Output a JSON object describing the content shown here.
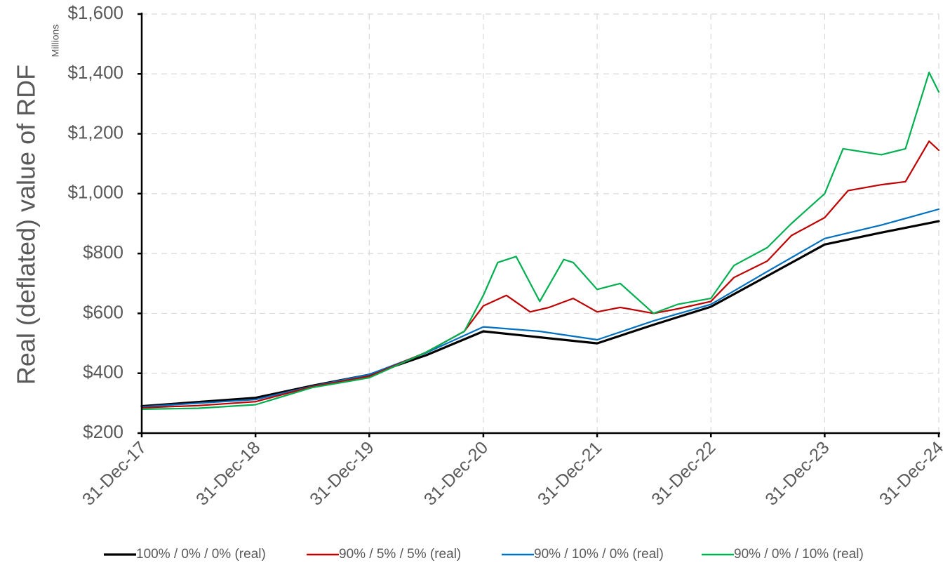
{
  "chart_data": {
    "type": "line",
    "title": "",
    "ylabel": "Real (deflated) value of RDF",
    "yunits": "Millions",
    "xlabel": "",
    "ylim": [
      200,
      1600
    ],
    "yticks": [
      200,
      400,
      600,
      800,
      1000,
      1200,
      1400,
      1600
    ],
    "ytick_labels": [
      "$200",
      "$400",
      "$600",
      "$800",
      "$1,000",
      "$1,200",
      "$1,400",
      "$1,600"
    ],
    "x_categories": [
      "31-Dec-17",
      "31-Dec-18",
      "31-Dec-19",
      "31-Dec-20",
      "31-Dec-21",
      "31-Dec-22",
      "31-Dec-23",
      "31-Dec-24"
    ],
    "grid": true,
    "legend_position": "bottom",
    "colors": {
      "axis": "#000000",
      "grid": "#d9d9d9",
      "text": "#595959"
    },
    "series": [
      {
        "name": "100% / 0% / 0% (real)",
        "color": "#000000",
        "x": [
          "31-Dec-17",
          "31-Dec-18",
          "30-Jun-19",
          "31-Dec-19",
          "30-Jun-20",
          "31-Dec-20",
          "31-Dec-21",
          "30-Jun-22",
          "31-Dec-22",
          "30-Jun-23",
          "31-Dec-23",
          "30-Jun-24",
          "31-Dec-24"
        ],
        "values": [
          290,
          318,
          358,
          395,
          460,
          540,
          500,
          562,
          622,
          725,
          830,
          870,
          908
        ]
      },
      {
        "name": "90% / 5% / 5% (real)",
        "color": "#c00000",
        "x": [
          "31-Dec-17",
          "30-Jun-18",
          "31-Dec-18",
          "30-Jun-19",
          "31-Dec-19",
          "30-Jun-20",
          "31-Oct-20",
          "31-Dec-20",
          "15-Mar-21",
          "30-May-21",
          "30-Jul-21",
          "15-Oct-21",
          "31-Dec-21",
          "15-Mar-22",
          "30-Jun-22",
          "15-Sep-22",
          "31-Dec-22",
          "15-Mar-23",
          "30-Jun-23",
          "15-Sep-23",
          "31-Dec-23",
          "15-Mar-24",
          "30-Jun-24",
          "15-Sep-24",
          "30-Nov-24",
          "31-Dec-24"
        ],
        "values": [
          285,
          292,
          305,
          355,
          390,
          470,
          540,
          625,
          660,
          605,
          620,
          650,
          605,
          620,
          600,
          615,
          640,
          720,
          775,
          860,
          920,
          1010,
          1030,
          1040,
          1175,
          1145
        ]
      },
      {
        "name": "90% / 10% / 0% (real)",
        "color": "#0070c0",
        "x": [
          "31-Dec-17",
          "31-Dec-18",
          "30-Jun-19",
          "31-Dec-19",
          "30-Jun-20",
          "31-Dec-20",
          "30-Jun-21",
          "31-Dec-21",
          "30-Jun-22",
          "31-Dec-22",
          "30-Jun-23",
          "31-Dec-23",
          "30-Jun-24",
          "31-Dec-24"
        ],
        "values": [
          288,
          312,
          356,
          396,
          468,
          555,
          540,
          512,
          575,
          630,
          740,
          850,
          895,
          948
        ]
      },
      {
        "name": "90% / 0% / 10% (real)",
        "color": "#00b050",
        "x": [
          "31-Dec-17",
          "30-Jun-18",
          "31-Dec-18",
          "30-Jun-19",
          "31-Dec-19",
          "30-Jun-20",
          "31-Oct-20",
          "31-Dec-20",
          "15-Feb-21",
          "15-Apr-21",
          "30-Jun-21",
          "15-Sep-21",
          "15-Oct-21",
          "31-Dec-21",
          "15-Mar-22",
          "30-Jun-22",
          "15-Sep-22",
          "31-Dec-22",
          "15-Mar-23",
          "30-Jun-23",
          "15-Sep-23",
          "31-Dec-23",
          "28-Feb-24",
          "30-Jun-24",
          "15-Sep-24",
          "30-Nov-24",
          "31-Dec-24"
        ],
        "values": [
          280,
          283,
          295,
          352,
          385,
          470,
          540,
          660,
          770,
          790,
          640,
          780,
          770,
          680,
          700,
          600,
          630,
          650,
          760,
          820,
          900,
          1000,
          1150,
          1130,
          1150,
          1405,
          1340
        ]
      }
    ]
  }
}
